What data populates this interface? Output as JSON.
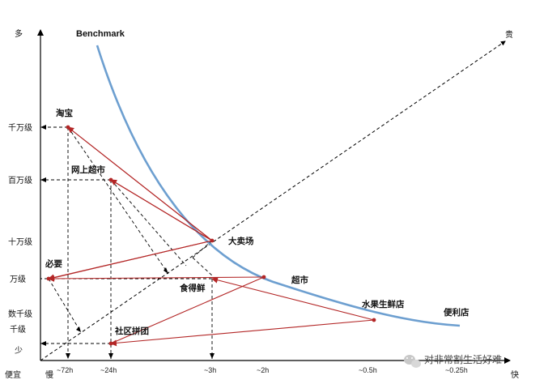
{
  "axes": {
    "y_top": "多",
    "y_bottom": "少",
    "x_left": "便宜",
    "x_slow": "慢",
    "x_fast": "快",
    "diag_end": "贵"
  },
  "y_ticks": [
    "千万级",
    "百万级",
    "十万级",
    "万级",
    "数千级",
    "千级"
  ],
  "x_ticks": [
    "~72h",
    "~24h",
    "~3h",
    "~2h",
    "~0.5h",
    "~0.25h"
  ],
  "curve_label": "Benchmark",
  "points": {
    "taobao": "淘宝",
    "online_super": "网上超市",
    "hypermarket": "大卖场",
    "biyao": "必要",
    "shidexian": "食得鲜",
    "supermarket": "超市",
    "fruit_store": "水果生鲜店",
    "convenience": "便利店",
    "community_group": "社区拼团"
  },
  "watermark": "对非常割生活好难",
  "colors": {
    "curve": "#6d9fd0",
    "red": "#b32626",
    "axis": "#000000"
  }
}
